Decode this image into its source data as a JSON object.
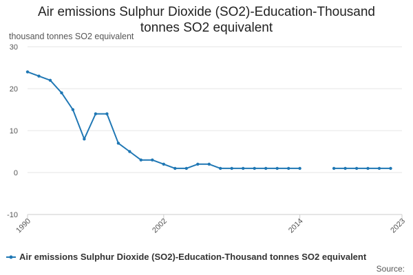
{
  "chart_data": {
    "type": "line",
    "title_lines": [
      "Air emissions Sulphur Dioxide (SO2)-Education-Thousand",
      "tonnes SO2 equivalent"
    ],
    "ylabel": "thousand tonnes SO2 equivalent",
    "xlabel": "",
    "xlim": [
      1990,
      2023
    ],
    "ylim": [
      -10,
      30
    ],
    "y_ticks": [
      -10,
      0,
      10,
      20,
      30
    ],
    "x_ticks": [
      1990,
      2002,
      2014,
      2023
    ],
    "grid": true,
    "legend_position": "bottom",
    "series": [
      {
        "name": "Air emissions Sulphur Dioxide (SO2)-Education-Thousand tonnes SO2 equivalent",
        "color": "#1f77b4",
        "points": [
          [
            1990,
            24
          ],
          [
            1991,
            23
          ],
          [
            1992,
            22
          ],
          [
            1993,
            19
          ],
          [
            1994,
            15
          ],
          [
            1995,
            8
          ],
          [
            1996,
            14
          ],
          [
            1997,
            14
          ],
          [
            1998,
            7
          ],
          [
            1999,
            5
          ],
          [
            2000,
            3
          ],
          [
            2001,
            3
          ],
          [
            2002,
            2
          ],
          [
            2003,
            1
          ],
          [
            2004,
            1
          ],
          [
            2005,
            2
          ],
          [
            2006,
            2
          ],
          [
            2007,
            1
          ],
          [
            2008,
            1
          ],
          [
            2009,
            1
          ],
          [
            2010,
            1
          ],
          [
            2011,
            1
          ],
          [
            2012,
            1
          ],
          [
            2013,
            1
          ],
          [
            2014,
            1
          ],
          [
            2015,
            null
          ],
          [
            2016,
            null
          ],
          [
            2017,
            1
          ],
          [
            2018,
            1
          ],
          [
            2019,
            1
          ],
          [
            2020,
            1
          ],
          [
            2021,
            1
          ],
          [
            2022,
            1
          ]
        ]
      }
    ],
    "source_label": "Source:"
  }
}
